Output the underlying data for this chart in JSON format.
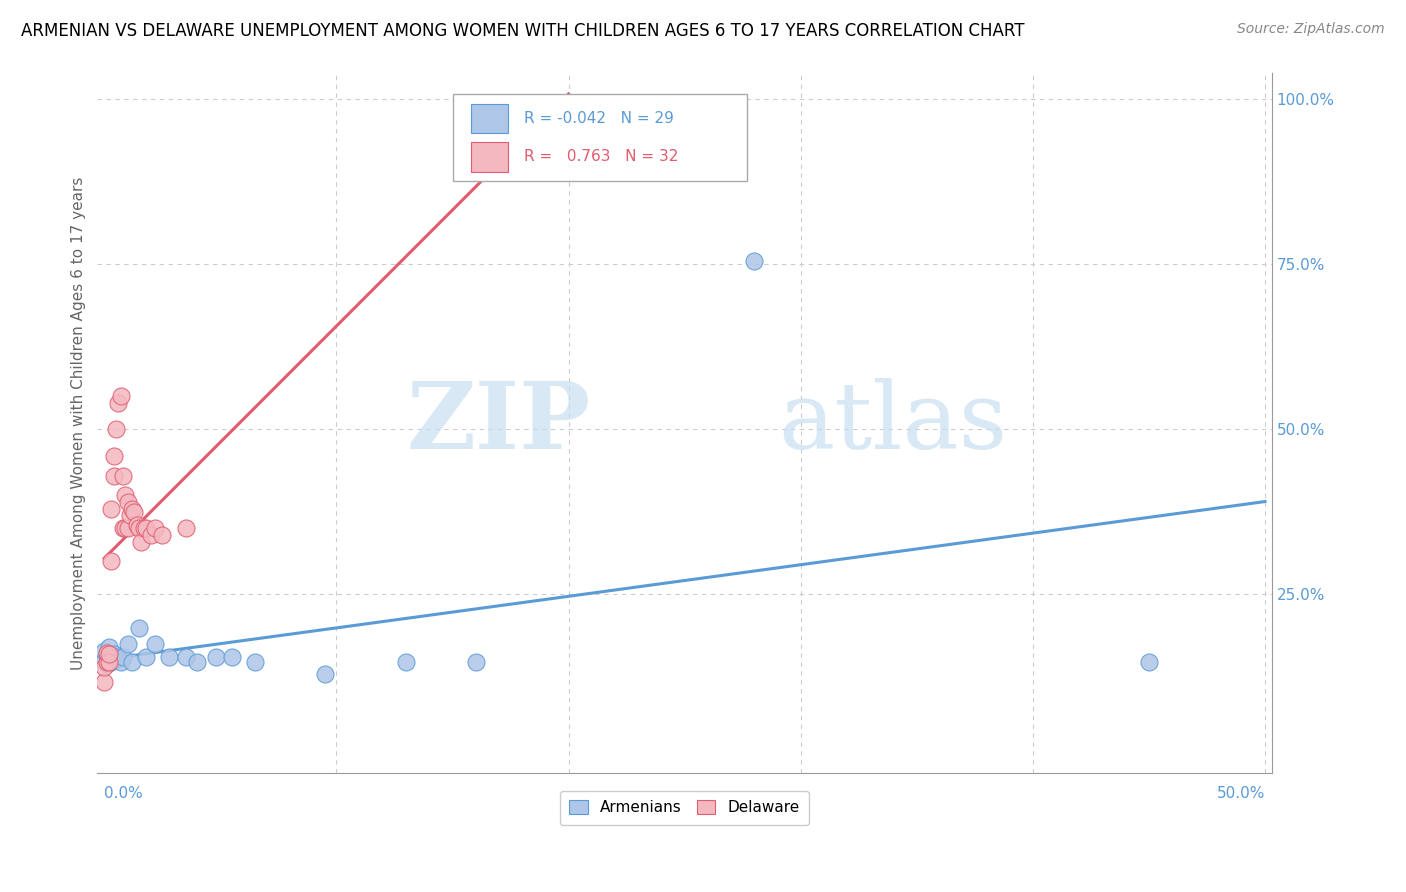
{
  "title": "ARMENIAN VS DELAWARE UNEMPLOYMENT AMONG WOMEN WITH CHILDREN AGES 6 TO 17 YEARS CORRELATION CHART",
  "source": "Source: ZipAtlas.com",
  "ylabel": "Unemployment Among Women with Children Ages 6 to 17 years",
  "legend_armenians": "Armenians",
  "legend_delaware": "Delaware",
  "r_armenians": "-0.042",
  "n_armenians": "29",
  "r_delaware": "0.763",
  "n_delaware": "32",
  "color_armenians": "#aec6e8",
  "color_delaware": "#f4b8c1",
  "color_armenians_line": "#5b9bd5",
  "color_delaware_line": "#e05c6e",
  "watermark_zip": "ZIP",
  "watermark_atlas": "atlas",
  "armenians_x": [
    0.0,
    0.0,
    0.001,
    0.001,
    0.002,
    0.002,
    0.003,
    0.003,
    0.004,
    0.005,
    0.006,
    0.007,
    0.008,
    0.01,
    0.012,
    0.015,
    0.018,
    0.022,
    0.028,
    0.035,
    0.04,
    0.048,
    0.055,
    0.065,
    0.095,
    0.13,
    0.16,
    0.28,
    0.45
  ],
  "armenians_y": [
    0.15,
    0.165,
    0.145,
    0.16,
    0.155,
    0.17,
    0.155,
    0.148,
    0.16,
    0.152,
    0.155,
    0.148,
    0.155,
    0.175,
    0.148,
    0.2,
    0.155,
    0.175,
    0.155,
    0.155,
    0.148,
    0.155,
    0.155,
    0.148,
    0.13,
    0.148,
    0.148,
    0.755,
    0.148
  ],
  "delaware_x": [
    0.0,
    0.0,
    0.001,
    0.001,
    0.002,
    0.002,
    0.003,
    0.003,
    0.004,
    0.004,
    0.005,
    0.006,
    0.007,
    0.008,
    0.008,
    0.009,
    0.009,
    0.01,
    0.01,
    0.011,
    0.012,
    0.013,
    0.014,
    0.015,
    0.016,
    0.017,
    0.018,
    0.02,
    0.022,
    0.025,
    0.035,
    0.17
  ],
  "delaware_y": [
    0.118,
    0.14,
    0.148,
    0.162,
    0.148,
    0.16,
    0.3,
    0.38,
    0.43,
    0.46,
    0.5,
    0.54,
    0.55,
    0.35,
    0.43,
    0.35,
    0.4,
    0.35,
    0.39,
    0.37,
    0.38,
    0.375,
    0.355,
    0.35,
    0.33,
    0.35,
    0.35,
    0.34,
    0.35,
    0.34,
    0.35,
    0.9
  ],
  "xlim": [
    0.0,
    0.5
  ],
  "ylim": [
    0.0,
    1.0
  ],
  "yticks": [
    0.0,
    0.25,
    0.5,
    0.75,
    1.0
  ],
  "ytick_labels": [
    "",
    "25.0%",
    "50.0%",
    "75.0%",
    "100.0%"
  ],
  "xtick_left_label": "0.0%",
  "xtick_right_label": "50.0%",
  "grid_dashes": [
    4,
    4
  ],
  "title_fontsize": 12,
  "source_fontsize": 10,
  "axis_label_fontsize": 11,
  "tick_fontsize": 11,
  "scatter_size": 150,
  "trend_linewidth": 2.2,
  "legend_box_color": "#5b9bd5",
  "legend_text_color_arm": "#5b9bd5",
  "legend_text_color_del": "#e05c6e"
}
